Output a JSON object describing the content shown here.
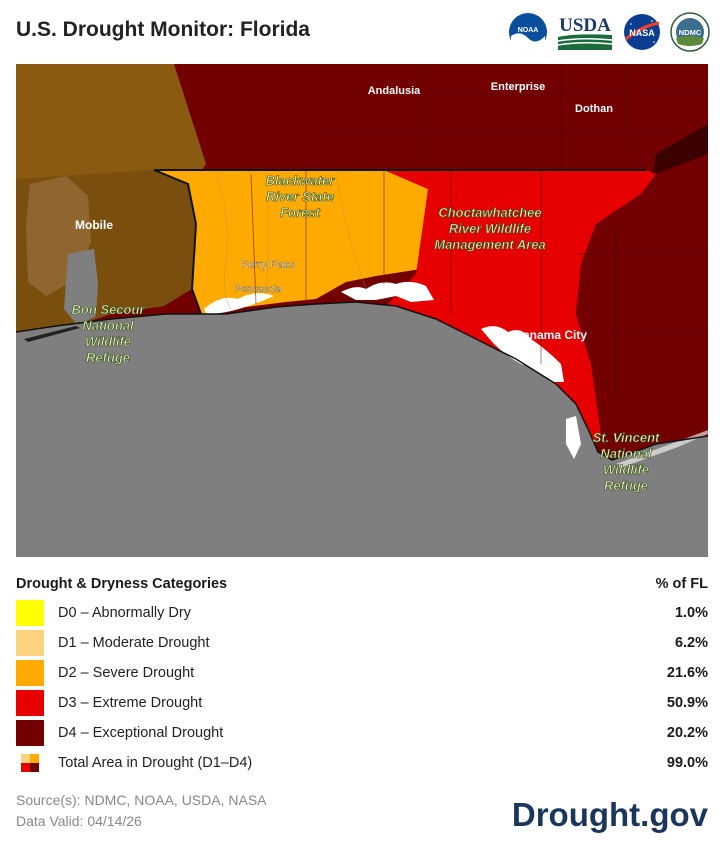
{
  "header": {
    "title": "U.S. Drought Monitor: Florida",
    "logos": {
      "noaa": "NOAA",
      "usda": "USDA",
      "nasa": "NASA",
      "ndmc": "NDMC"
    }
  },
  "map": {
    "cities": {
      "andalusia": "Andalusia",
      "enterprise": "Enterprise",
      "dothan": "Dothan",
      "mobile": "Mobile",
      "ferry_pass": "Ferry Pass",
      "pensacola": "Pensacola",
      "panama_city": "Panama City"
    },
    "areas": {
      "blackwater": [
        "Blackwater",
        "River State",
        "Forest"
      ],
      "choctawhatchee": [
        "Choctawhatchee",
        "River Wildlife",
        "Management Area"
      ],
      "bon_secour": [
        "Bon Secour",
        "National",
        "Wildlife",
        "Refuge"
      ],
      "st_vincent": [
        "St. Vincent",
        "National",
        "Wildlife",
        "Refuge"
      ]
    }
  },
  "legend": {
    "heading": "Drought & Dryness Categories",
    "pct_heading": "% of FL",
    "categories": [
      {
        "label": "D0 – Abnormally Dry",
        "pct": "1.0%",
        "color": "#ffff00"
      },
      {
        "label": "D1 – Moderate Drought",
        "pct": "6.2%",
        "color": "#fcd37f"
      },
      {
        "label": "D2 – Severe Drought",
        "pct": "21.6%",
        "color": "#ffaa00"
      },
      {
        "label": "D3 – Extreme Drought",
        "pct": "50.9%",
        "color": "#e60000"
      },
      {
        "label": "D4 – Exceptional Drought",
        "pct": "20.2%",
        "color": "#730000"
      }
    ],
    "total": {
      "label": "Total Area in Drought (D1–D4)",
      "pct": "99.0%"
    }
  },
  "footer": {
    "source": "Source(s): NDMC, NOAA, USDA, NASA",
    "valid": "Data Valid: 04/14/26",
    "brand": "Drought.gov"
  }
}
